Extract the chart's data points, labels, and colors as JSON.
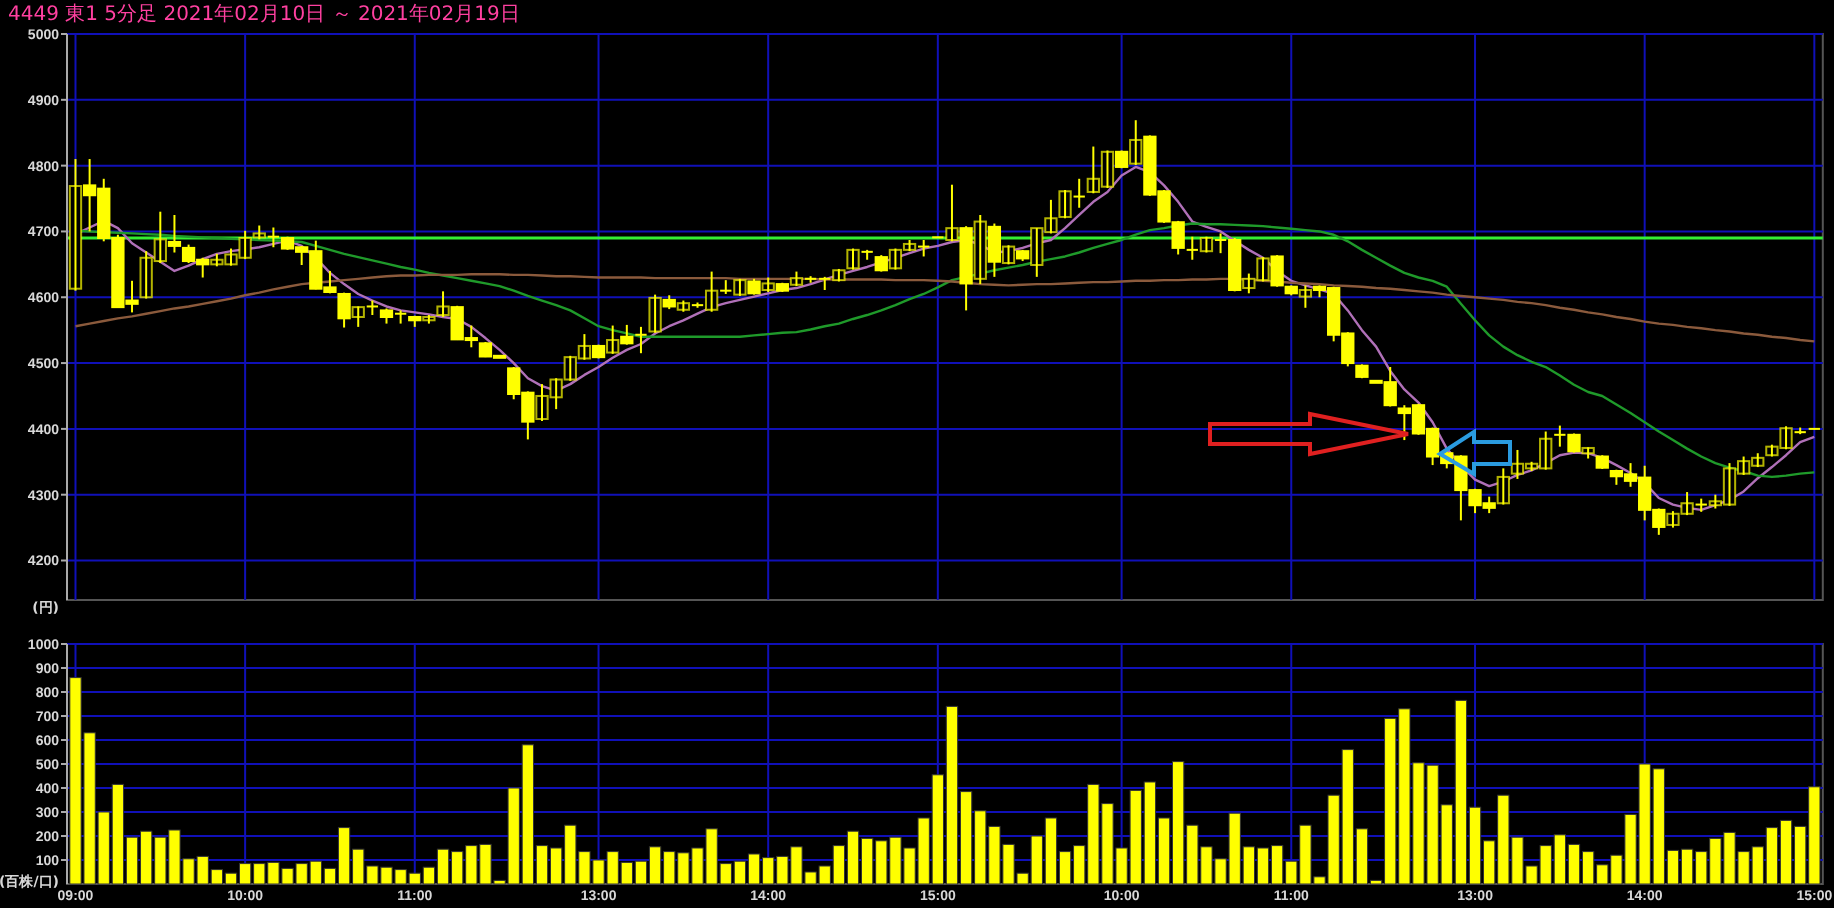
{
  "chart_data": [
    {
      "type": "candlestick",
      "title": "4449 東1 5分足 2021年02月10日 ～ 2021年02月19日",
      "ylabel": "(円)",
      "categories": [
        null,
        null,
        null,
        null,
        null,
        null,
        null,
        null,
        null,
        null,
        null,
        null,
        null,
        null,
        null,
        null,
        null,
        null,
        null,
        null,
        null,
        null,
        null,
        null,
        null,
        null,
        null,
        null,
        null,
        null,
        null,
        null,
        null,
        null,
        null,
        null,
        null,
        null,
        null,
        null,
        null,
        null,
        null,
        null,
        null,
        null,
        null,
        null,
        null,
        null,
        null,
        null,
        null,
        null,
        null,
        null,
        null,
        null,
        null,
        null,
        null,
        null,
        null,
        null,
        null,
        null,
        null,
        null,
        null,
        null,
        null,
        null,
        null,
        null,
        null,
        null,
        null,
        null,
        null,
        null,
        null,
        null,
        null,
        null,
        null,
        null,
        null,
        null,
        null,
        null,
        null,
        null,
        null,
        null,
        null,
        null,
        null,
        null,
        null,
        null,
        null,
        null,
        null,
        null,
        null,
        null,
        null,
        null,
        null,
        null,
        null,
        null,
        null,
        null,
        null,
        null,
        null,
        null,
        null,
        null,
        null,
        null,
        null,
        null
      ],
      "color": "#ffff00",
      "ohlc": [
        [
          4613,
          4810,
          4610,
          4769
        ],
        [
          4770,
          4810,
          4700,
          4755
        ],
        [
          4765,
          4780,
          4685,
          4690
        ],
        [
          4690,
          4695,
          4585,
          4585
        ],
        [
          4595,
          4625,
          4577,
          4590
        ],
        [
          4600,
          4670,
          4598,
          4660
        ],
        [
          4655,
          4730,
          4652,
          4688
        ],
        [
          4684,
          4725,
          4668,
          4678
        ],
        [
          4675,
          4680,
          4652,
          4655
        ],
        [
          4657,
          4660,
          4630,
          4650
        ],
        [
          4650,
          4666,
          4647,
          4657
        ],
        [
          4650,
          4674,
          4648,
          4665
        ],
        [
          4660,
          4701,
          4658,
          4690
        ],
        [
          4691,
          4709,
          4688,
          4697
        ],
        [
          4692,
          4706,
          4676,
          4692
        ],
        [
          4690,
          4692,
          4672,
          4674
        ],
        [
          4676,
          4678,
          4649,
          4669
        ],
        [
          4670,
          4686,
          4612,
          4613
        ],
        [
          4615,
          4640,
          4606,
          4608
        ],
        [
          4605,
          4607,
          4554,
          4568
        ],
        [
          4570,
          4586,
          4555,
          4585
        ],
        [
          4586,
          4595,
          4573,
          4586
        ],
        [
          4580,
          4583,
          4560,
          4570
        ],
        [
          4575,
          4580,
          4560,
          4575
        ],
        [
          4570,
          4572,
          4555,
          4565
        ],
        [
          4565,
          4573,
          4560,
          4570
        ],
        [
          4573,
          4609,
          4570,
          4586
        ],
        [
          4585,
          4587,
          4535,
          4536
        ],
        [
          4537,
          4557,
          4524,
          4536
        ],
        [
          4530,
          4532,
          4509,
          4510
        ],
        [
          4510,
          4511,
          4508,
          4509
        ],
        [
          4492,
          4494,
          4445,
          4453
        ],
        [
          4455,
          4457,
          4384,
          4411
        ],
        [
          4415,
          4468,
          4412,
          4450
        ],
        [
          4448,
          4477,
          4430,
          4475
        ],
        [
          4475,
          4511,
          4473,
          4509
        ],
        [
          4507,
          4544,
          4505,
          4526
        ],
        [
          4526,
          4528,
          4507,
          4509
        ],
        [
          4516,
          4557,
          4514,
          4535
        ],
        [
          4540,
          4558,
          4528,
          4530
        ],
        [
          4543,
          4555,
          4515,
          4543
        ],
        [
          4548,
          4604,
          4546,
          4599
        ],
        [
          4596,
          4603,
          4582,
          4586
        ],
        [
          4581,
          4595,
          4578,
          4591
        ],
        [
          4588,
          4592,
          4584,
          4588
        ],
        [
          4581,
          4639,
          4578,
          4610
        ],
        [
          4610,
          4626,
          4605,
          4610
        ],
        [
          4604,
          4628,
          4602,
          4626
        ],
        [
          4624,
          4628,
          4604,
          4606
        ],
        [
          4611,
          4630,
          4608,
          4621
        ],
        [
          4620,
          4622,
          4608,
          4610
        ],
        [
          4619,
          4639,
          4617,
          4629
        ],
        [
          4628,
          4632,
          4622,
          4628
        ],
        [
          4628,
          4631,
          4611,
          4628
        ],
        [
          4626,
          4643,
          4624,
          4641
        ],
        [
          4644,
          4674,
          4642,
          4672
        ],
        [
          4669,
          4672,
          4657,
          4669
        ],
        [
          4661,
          4664,
          4639,
          4641
        ],
        [
          4644,
          4674,
          4642,
          4672
        ],
        [
          4672,
          4687,
          4670,
          4681
        ],
        [
          4677,
          4687,
          4662,
          4677
        ],
        [
          4691,
          4692,
          4690,
          4691
        ],
        [
          4687,
          4771,
          4685,
          4705
        ],
        [
          4705,
          4708,
          4580,
          4621
        ],
        [
          4628,
          4725,
          4620,
          4715
        ],
        [
          4707,
          4712,
          4631,
          4654
        ],
        [
          4652,
          4679,
          4650,
          4677
        ],
        [
          4670,
          4672,
          4655,
          4659
        ],
        [
          4649,
          4705,
          4631,
          4705
        ],
        [
          4699,
          4748,
          4697,
          4720
        ],
        [
          4722,
          4763,
          4720,
          4761
        ],
        [
          4753,
          4780,
          4736,
          4753
        ],
        [
          4760,
          4829,
          4758,
          4780
        ],
        [
          4768,
          4823,
          4766,
          4821
        ],
        [
          4821,
          4823,
          4796,
          4798
        ],
        [
          4803,
          4869,
          4801,
          4839
        ],
        [
          4844,
          4846,
          4754,
          4756
        ],
        [
          4761,
          4763,
          4713,
          4715
        ],
        [
          4714,
          4716,
          4665,
          4675
        ],
        [
          4672,
          4692,
          4657,
          4672
        ],
        [
          4670,
          4692,
          4668,
          4690
        ],
        [
          4687,
          4697,
          4667,
          4687
        ],
        [
          4687,
          4690,
          4609,
          4611
        ],
        [
          4614,
          4636,
          4606,
          4628
        ],
        [
          4626,
          4661,
          4624,
          4659
        ],
        [
          4662,
          4664,
          4616,
          4618
        ],
        [
          4616,
          4618,
          4603,
          4606
        ],
        [
          4601,
          4618,
          4584,
          4611
        ],
        [
          4616,
          4618,
          4600,
          4611
        ],
        [
          4614,
          4616,
          4533,
          4543
        ],
        [
          4545,
          4547,
          4495,
          4500
        ],
        [
          4496,
          4498,
          4477,
          4479
        ],
        [
          4472,
          4473,
          4470,
          4471
        ],
        [
          4471,
          4494,
          4434,
          4436
        ],
        [
          4431,
          4436,
          4383,
          4424
        ],
        [
          4436,
          4438,
          4391,
          4393
        ],
        [
          4400,
          4402,
          4345,
          4358
        ],
        [
          4363,
          4367,
          4340,
          4348
        ],
        [
          4358,
          4360,
          4261,
          4307
        ],
        [
          4307,
          4309,
          4272,
          4284
        ],
        [
          4287,
          4297,
          4272,
          4280
        ],
        [
          4287,
          4340,
          4285,
          4327
        ],
        [
          4332,
          4368,
          4324,
          4347
        ],
        [
          4340,
          4350,
          4336,
          4347
        ],
        [
          4340,
          4396,
          4338,
          4385
        ],
        [
          4391,
          4405,
          4373,
          4391
        ],
        [
          4391,
          4393,
          4364,
          4366
        ],
        [
          4363,
          4372,
          4355,
          4371
        ],
        [
          4358,
          4360,
          4339,
          4341
        ],
        [
          4336,
          4338,
          4315,
          4328
        ],
        [
          4331,
          4348,
          4312,
          4321
        ],
        [
          4326,
          4344,
          4261,
          4277
        ],
        [
          4277,
          4279,
          4239,
          4251
        ],
        [
          4254,
          4275,
          4250,
          4271
        ],
        [
          4271,
          4304,
          4269,
          4287
        ],
        [
          4285,
          4294,
          4274,
          4285
        ],
        [
          4284,
          4300,
          4279,
          4290
        ],
        [
          4285,
          4348,
          4283,
          4340
        ],
        [
          4332,
          4358,
          4330,
          4351
        ],
        [
          4344,
          4363,
          4342,
          4356
        ],
        [
          4360,
          4376,
          4358,
          4373
        ],
        [
          4371,
          4404,
          4369,
          4401
        ],
        [
          4395,
          4402,
          4392,
          4395
        ],
        [
          4400,
          4401,
          4399,
          4400
        ]
      ],
      "series": [
        {
          "type": "line",
          "color": "#b070b8",
          "values": [
            4696,
            4706,
            4716,
            4705,
            4682,
            4668,
            4654,
            4640,
            4648,
            4658,
            4666,
            4670,
            4673,
            4676,
            4681,
            4686,
            4678,
            4660,
            4637,
            4620,
            4605,
            4595,
            4586,
            4580,
            4577,
            4574,
            4570,
            4567,
            4555,
            4538,
            4520,
            4500,
            4477,
            4465,
            4458,
            4468,
            4482,
            4494,
            4508,
            4520,
            4529,
            4545,
            4556,
            4565,
            4575,
            4585,
            4591,
            4596,
            4601,
            4606,
            4611,
            4614,
            4620,
            4627,
            4634,
            4640,
            4646,
            4653,
            4660,
            4667,
            4674,
            4678,
            4684,
            4687,
            4680,
            4668,
            4670,
            4675,
            4682,
            4687,
            4705,
            4725,
            4745,
            4760,
            4785,
            4798,
            4790,
            4770,
            4745,
            4715,
            4707,
            4700,
            4686,
            4672,
            4660,
            4640,
            4625,
            4618,
            4612,
            4605,
            4580,
            4550,
            4525,
            4488,
            4460,
            4440,
            4410,
            4370,
            4345,
            4323,
            4313,
            4320,
            4330,
            4337,
            4348,
            4360,
            4364,
            4363,
            4356,
            4345,
            4333,
            4318,
            4295,
            4285,
            4280,
            4277,
            4284,
            4292,
            4305,
            4325,
            4342,
            4360,
            4380,
            4388
          ]
        },
        {
          "type": "line",
          "color": "#1f9a2a",
          "values": [
            4701,
            4700,
            4699,
            4698,
            4697,
            4696,
            4695,
            4693,
            4692,
            4691,
            4690,
            4689,
            4688,
            4687,
            4686,
            4685,
            4684,
            4678,
            4672,
            4666,
            4661,
            4656,
            4651,
            4646,
            4642,
            4637,
            4633,
            4629,
            4625,
            4621,
            4617,
            4610,
            4602,
            4595,
            4588,
            4580,
            4568,
            4556,
            4550,
            4545,
            4540,
            4540,
            4540,
            4540,
            4540,
            4540,
            4540,
            4540,
            4542,
            4544,
            4546,
            4547,
            4551,
            4556,
            4560,
            4567,
            4573,
            4580,
            4588,
            4597,
            4605,
            4615,
            4626,
            4631,
            4636,
            4641,
            4645,
            4649,
            4654,
            4658,
            4662,
            4668,
            4675,
            4681,
            4687,
            4695,
            4702,
            4705,
            4709,
            4712,
            4711,
            4711,
            4710,
            4709,
            4708,
            4706,
            4704,
            4702,
            4700,
            4695,
            4685,
            4672,
            4660,
            4648,
            4637,
            4630,
            4625,
            4616,
            4590,
            4565,
            4542,
            4525,
            4512,
            4502,
            4494,
            4481,
            4467,
            4456,
            4450,
            4437,
            4424,
            4410,
            4396,
            4383,
            4370,
            4358,
            4348,
            4341,
            4336,
            4329,
            4327,
            4329,
            4332,
            4334
          ]
        },
        {
          "type": "line",
          "color": "#8b5a3c",
          "values": [
            4556,
            4560,
            4564,
            4568,
            4571,
            4575,
            4579,
            4583,
            4586,
            4590,
            4594,
            4598,
            4603,
            4607,
            4612,
            4616,
            4620,
            4622,
            4624,
            4626,
            4628,
            4630,
            4632,
            4633,
            4633,
            4634,
            4634,
            4634,
            4635,
            4635,
            4635,
            4634,
            4634,
            4633,
            4632,
            4632,
            4631,
            4630,
            4630,
            4630,
            4630,
            4629,
            4629,
            4629,
            4629,
            4629,
            4629,
            4628,
            4628,
            4628,
            4628,
            4628,
            4628,
            4627,
            4627,
            4627,
            4627,
            4627,
            4626,
            4626,
            4626,
            4625,
            4624,
            4622,
            4620,
            4619,
            4618,
            4619,
            4620,
            4620,
            4621,
            4622,
            4623,
            4623,
            4624,
            4625,
            4625,
            4626,
            4626,
            4627,
            4627,
            4628,
            4628,
            4627,
            4625,
            4624,
            4622,
            4621,
            4620,
            4618,
            4617,
            4616,
            4614,
            4613,
            4611,
            4609,
            4607,
            4604,
            4602,
            4600,
            4598,
            4596,
            4593,
            4591,
            4588,
            4584,
            4581,
            4577,
            4574,
            4570,
            4567,
            4563,
            4560,
            4558,
            4555,
            4553,
            4550,
            4548,
            4545,
            4543,
            4540,
            4538,
            4535,
            4533
          ]
        }
      ],
      "ref_lines": [
        {
          "axis": "y",
          "value": 4690,
          "color": "#33ee33"
        }
      ],
      "ylim": [
        4140,
        5000
      ],
      "yticks": [
        4200,
        4300,
        4400,
        4500,
        4600,
        4700,
        4800,
        4900,
        5000
      ],
      "grid": true,
      "tick_labels": "y"
    },
    {
      "type": "bar",
      "ylabel": "(百株/口)",
      "categories": [
        "09:00",
        null,
        null,
        null,
        null,
        null,
        null,
        null,
        null,
        null,
        null,
        null,
        "10:00",
        null,
        null,
        null,
        null,
        null,
        null,
        null,
        null,
        null,
        null,
        null,
        "11:00",
        null,
        null,
        null,
        null,
        null,
        null,
        null,
        null,
        null,
        null,
        null,
        null,
        "13:00",
        null,
        null,
        null,
        null,
        null,
        null,
        null,
        null,
        null,
        null,
        null,
        "14:00",
        null,
        null,
        null,
        null,
        null,
        null,
        null,
        null,
        null,
        null,
        null,
        "15:00",
        null,
        null,
        null,
        null,
        null,
        null,
        null,
        null,
        null,
        null,
        null,
        null,
        "10:00",
        null,
        null,
        null,
        null,
        null,
        null,
        null,
        null,
        null,
        null,
        null,
        "11:00",
        null,
        null,
        null,
        null,
        null,
        null,
        null,
        null,
        null,
        null,
        null,
        null,
        "13:00",
        null,
        null,
        null,
        null,
        null,
        null,
        null,
        null,
        null,
        null,
        null,
        "14:00",
        null,
        null,
        null,
        null,
        null,
        null,
        null,
        null,
        null,
        null,
        null,
        "15:00"
      ],
      "color": "#ffff00",
      "values": [
        860,
        630,
        300,
        415,
        195,
        220,
        195,
        225,
        105,
        115,
        60,
        45,
        85,
        85,
        90,
        65,
        85,
        95,
        65,
        235,
        145,
        75,
        70,
        60,
        45,
        70,
        145,
        135,
        160,
        165,
        15,
        400,
        580,
        160,
        150,
        245,
        135,
        100,
        135,
        90,
        95,
        155,
        135,
        130,
        150,
        230,
        85,
        95,
        125,
        110,
        115,
        155,
        50,
        75,
        160,
        220,
        190,
        180,
        195,
        150,
        275,
        455,
        740,
        385,
        305,
        240,
        165,
        45,
        200,
        275,
        135,
        160,
        415,
        335,
        150,
        390,
        425,
        275,
        510,
        245,
        155,
        105,
        295,
        155,
        150,
        160,
        95,
        245,
        30,
        370,
        560,
        230,
        15,
        690,
        730,
        505,
        495,
        330,
        765,
        320,
        180,
        370,
        195,
        75,
        160,
        205,
        165,
        135,
        80,
        120,
        290,
        500,
        480,
        140,
        145,
        135,
        190,
        215,
        135,
        155,
        235,
        265,
        240,
        405
      ],
      "ylim": [
        0,
        1000
      ],
      "yticks": [
        100,
        200,
        300,
        400,
        500,
        600,
        700,
        800,
        900,
        1000
      ],
      "grid": true
    }
  ]
}
